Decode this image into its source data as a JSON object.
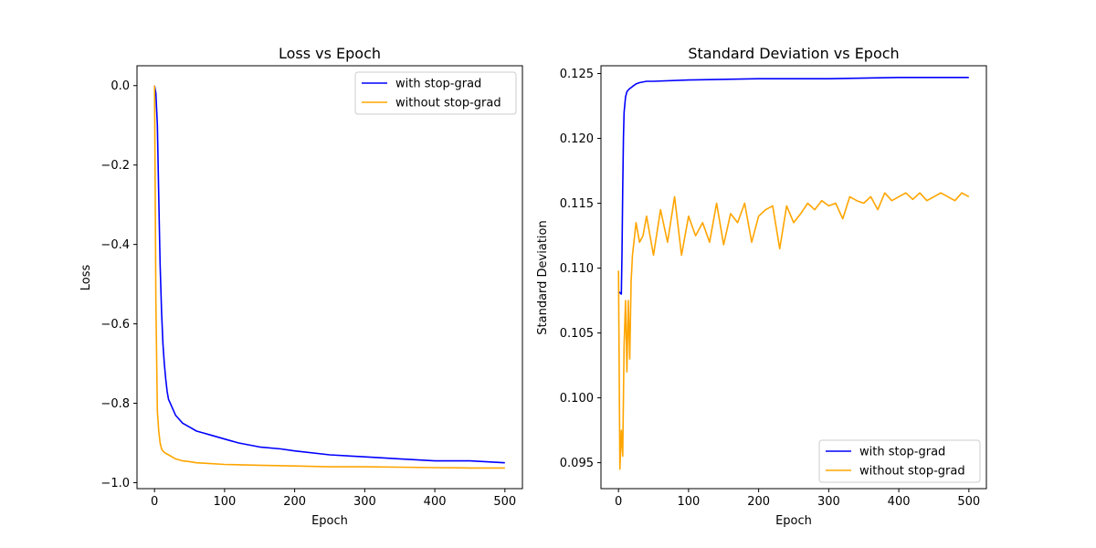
{
  "colors": {
    "with": "#0000ff",
    "without": "#ffa500"
  },
  "chart_data": [
    {
      "type": "line",
      "title": "Loss vs Epoch",
      "xlabel": "Epoch",
      "ylabel": "Loss",
      "xlim": [
        -25,
        525
      ],
      "ylim": [
        -1.015,
        0.05
      ],
      "xticks": [
        0,
        100,
        200,
        300,
        400,
        500
      ],
      "xtick_labels": [
        "0",
        "100",
        "200",
        "300",
        "400",
        "500"
      ],
      "yticks": [
        0.0,
        -0.2,
        -0.4,
        -0.6,
        -0.8,
        -1.0
      ],
      "ytick_labels": [
        "0.0",
        "−0.2",
        "−0.4",
        "−0.6",
        "−0.8",
        "−1.0"
      ],
      "grid": false,
      "legend_position": "top-right",
      "series": [
        {
          "name": "with stop-grad",
          "color_key": "with",
          "x": [
            0,
            2,
            4,
            6,
            8,
            10,
            12,
            14,
            16,
            18,
            20,
            25,
            30,
            35,
            40,
            50,
            60,
            70,
            80,
            100,
            120,
            150,
            180,
            200,
            250,
            300,
            350,
            400,
            450,
            500
          ],
          "y": [
            0.0,
            -0.02,
            -0.1,
            -0.28,
            -0.45,
            -0.57,
            -0.65,
            -0.7,
            -0.74,
            -0.77,
            -0.79,
            -0.81,
            -0.83,
            -0.84,
            -0.85,
            -0.86,
            -0.87,
            -0.875,
            -0.88,
            -0.89,
            -0.9,
            -0.91,
            -0.915,
            -0.92,
            -0.93,
            -0.935,
            -0.94,
            -0.945,
            -0.945,
            -0.95
          ]
        },
        {
          "name": "without stop-grad",
          "color_key": "without",
          "x": [
            0,
            2,
            4,
            6,
            8,
            10,
            12,
            15,
            20,
            30,
            40,
            50,
            60,
            80,
            100,
            150,
            200,
            250,
            300,
            350,
            400,
            450,
            500
          ],
          "y": [
            0.0,
            -0.55,
            -0.82,
            -0.87,
            -0.9,
            -0.915,
            -0.92,
            -0.925,
            -0.93,
            -0.94,
            -0.945,
            -0.947,
            -0.95,
            -0.952,
            -0.954,
            -0.956,
            -0.958,
            -0.96,
            -0.96,
            -0.961,
            -0.962,
            -0.963,
            -0.963
          ]
        }
      ]
    },
    {
      "type": "line",
      "title": "Standard Deviation vs Epoch",
      "xlabel": "Epoch",
      "ylabel": "Standard Deviation",
      "xlim": [
        -25,
        525
      ],
      "ylim": [
        0.093,
        0.1256
      ],
      "xticks": [
        0,
        100,
        200,
        300,
        400,
        500
      ],
      "xtick_labels": [
        "0",
        "100",
        "200",
        "300",
        "400",
        "500"
      ],
      "yticks": [
        0.095,
        0.1,
        0.105,
        0.11,
        0.115,
        0.12,
        0.125
      ],
      "ytick_labels": [
        "0.095",
        "0.100",
        "0.105",
        "0.110",
        "0.115",
        "0.120",
        "0.125"
      ],
      "grid": false,
      "legend_position": "bottom-right",
      "series": [
        {
          "name": "with stop-grad",
          "color_key": "with",
          "x": [
            0,
            2,
            4,
            5,
            6,
            7,
            8,
            10,
            12,
            15,
            20,
            25,
            30,
            40,
            50,
            100,
            200,
            300,
            400,
            500
          ],
          "y": [
            0.1082,
            0.1081,
            0.108,
            0.111,
            0.116,
            0.12,
            0.122,
            0.1232,
            0.1236,
            0.1238,
            0.124,
            0.1242,
            0.1243,
            0.1244,
            0.1244,
            0.1245,
            0.1246,
            0.1246,
            0.1247,
            0.1247
          ]
        },
        {
          "name": "without stop-grad",
          "color_key": "without",
          "x": [
            0,
            2,
            4,
            6,
            8,
            10,
            12,
            14,
            16,
            18,
            20,
            25,
            30,
            35,
            40,
            50,
            60,
            70,
            80,
            90,
            100,
            110,
            120,
            130,
            140,
            150,
            160,
            170,
            180,
            190,
            200,
            210,
            220,
            230,
            240,
            250,
            260,
            270,
            280,
            290,
            300,
            310,
            320,
            330,
            340,
            350,
            360,
            370,
            380,
            390,
            400,
            410,
            420,
            430,
            440,
            450,
            460,
            470,
            480,
            490,
            500
          ],
          "y": [
            0.1098,
            0.0945,
            0.0975,
            0.0955,
            0.104,
            0.1075,
            0.102,
            0.1075,
            0.103,
            0.109,
            0.111,
            0.1135,
            0.112,
            0.1125,
            0.114,
            0.111,
            0.1145,
            0.112,
            0.1155,
            0.111,
            0.114,
            0.1125,
            0.1135,
            0.112,
            0.115,
            0.1118,
            0.1142,
            0.1135,
            0.115,
            0.112,
            0.114,
            0.1145,
            0.1148,
            0.1115,
            0.1148,
            0.1135,
            0.1142,
            0.115,
            0.1145,
            0.1152,
            0.1148,
            0.115,
            0.1138,
            0.1155,
            0.1152,
            0.115,
            0.1155,
            0.1145,
            0.1158,
            0.1152,
            0.1155,
            0.1158,
            0.1153,
            0.1158,
            0.1152,
            0.1155,
            0.1158,
            0.1155,
            0.1152,
            0.1158,
            0.1155
          ]
        }
      ]
    }
  ]
}
